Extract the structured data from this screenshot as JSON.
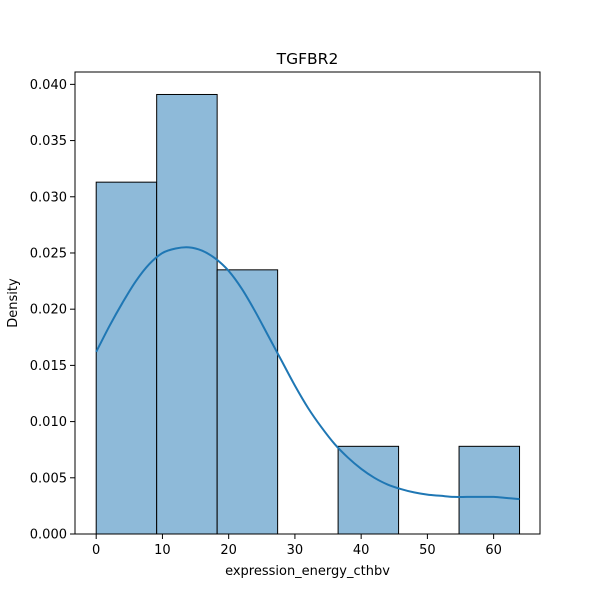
{
  "chart_data": {
    "type": "bar",
    "title": "TGFBR2",
    "xlabel": "expression_energy_cthbv",
    "ylabel": "Density",
    "xlim": [
      -3.2,
      67.0
    ],
    "ylim": [
      0,
      0.0411
    ],
    "xticks": [
      0,
      10,
      20,
      30,
      40,
      50,
      60
    ],
    "yticks": [
      0.0,
      0.005,
      0.01,
      0.015,
      0.02,
      0.025,
      0.03,
      0.035,
      0.04
    ],
    "ytick_labels": [
      "0.000",
      "0.005",
      "0.010",
      "0.015",
      "0.020",
      "0.025",
      "0.030",
      "0.035",
      "0.040"
    ],
    "bins": [
      {
        "x0": 0.0,
        "x1": 9.13,
        "density": 0.0313
      },
      {
        "x0": 9.13,
        "x1": 18.26,
        "density": 0.0391
      },
      {
        "x0": 18.26,
        "x1": 27.39,
        "density": 0.0235
      },
      {
        "x0": 27.39,
        "x1": 36.52,
        "density": 0.0
      },
      {
        "x0": 36.52,
        "x1": 45.65,
        "density": 0.0078
      },
      {
        "x0": 45.65,
        "x1": 54.78,
        "density": 0.0
      },
      {
        "x0": 54.78,
        "x1": 63.91,
        "density": 0.0078
      }
    ],
    "kde": {
      "x": [
        0,
        2,
        4,
        6,
        8,
        10,
        12,
        14,
        16,
        18,
        20,
        22,
        24,
        26,
        28,
        30,
        32,
        34,
        36,
        38,
        40,
        42,
        44,
        46,
        48,
        50,
        52,
        54,
        56,
        58,
        60,
        62,
        63.91
      ],
      "y": [
        0.0162,
        0.0185,
        0.0206,
        0.0225,
        0.024,
        0.025,
        0.0254,
        0.0255,
        0.0252,
        0.0245,
        0.0234,
        0.0218,
        0.0198,
        0.0176,
        0.0154,
        0.0132,
        0.0112,
        0.0095,
        0.008,
        0.0068,
        0.0058,
        0.005,
        0.0044,
        0.004,
        0.0037,
        0.0035,
        0.0034,
        0.0033,
        0.0033,
        0.0033,
        0.0033,
        0.0032,
        0.0031
      ]
    },
    "colors": {
      "bar_fill": "#8ebad9",
      "bar_edge": "#000000",
      "kde_line": "#1f77b4"
    },
    "grid": false
  }
}
